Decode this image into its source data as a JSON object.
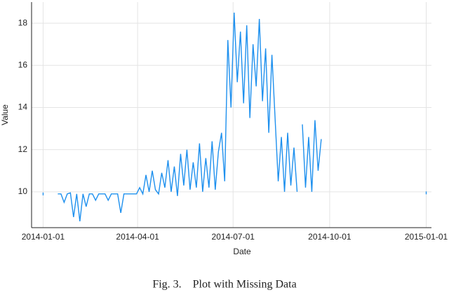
{
  "chart_data": {
    "type": "line",
    "caption": "Fig. 3.    Plot with Missing Data",
    "xlabel": "Date",
    "ylabel": "Value",
    "x": [
      "2014-01-01",
      "2014-01-04",
      "2014-01-15",
      "2014-01-18",
      "2014-01-21",
      "2014-01-24",
      "2014-01-27",
      "2014-01-30",
      "2014-02-02",
      "2014-02-05",
      "2014-02-08",
      "2014-02-11",
      "2014-02-14",
      "2014-02-17",
      "2014-02-20",
      "2014-02-23",
      "2014-02-26",
      "2014-03-01",
      "2014-03-04",
      "2014-03-07",
      "2014-03-10",
      "2014-03-13",
      "2014-03-16",
      "2014-03-19",
      "2014-03-22",
      "2014-03-25",
      "2014-03-28",
      "2014-03-31",
      "2014-04-03",
      "2014-04-06",
      "2014-04-09",
      "2014-04-12",
      "2014-04-15",
      "2014-04-18",
      "2014-04-21",
      "2014-04-24",
      "2014-04-27",
      "2014-04-30",
      "2014-05-03",
      "2014-05-06",
      "2014-05-09",
      "2014-05-12",
      "2014-05-15",
      "2014-05-18",
      "2014-05-21",
      "2014-05-24",
      "2014-05-27",
      "2014-05-30",
      "2014-06-02",
      "2014-06-05",
      "2014-06-08",
      "2014-06-11",
      "2014-06-14",
      "2014-06-17",
      "2014-06-20",
      "2014-06-23",
      "2014-06-26",
      "2014-06-29",
      "2014-07-02",
      "2014-07-05",
      "2014-07-08",
      "2014-07-11",
      "2014-07-14",
      "2014-07-17",
      "2014-07-20",
      "2014-07-23",
      "2014-07-26",
      "2014-07-29",
      "2014-08-01",
      "2014-08-04",
      "2014-08-07",
      "2014-08-10",
      "2014-08-13",
      "2014-08-16",
      "2014-08-19",
      "2014-08-22",
      "2014-08-25",
      "2014-08-28",
      "2014-08-31",
      "2014-09-02",
      "2014-09-05",
      "2014-09-08",
      "2014-09-11",
      "2014-09-14",
      "2014-09-17",
      "2014-09-20",
      "2014-09-23",
      "2014-09-26",
      "2015-01-01"
    ],
    "series": [
      {
        "name": "Value",
        "color": "#1e90ee",
        "values": [
          9.9,
          null,
          9.9,
          9.9,
          9.5,
          9.9,
          9.95,
          8.8,
          9.9,
          8.6,
          9.9,
          9.3,
          9.9,
          9.9,
          9.6,
          9.9,
          9.9,
          9.9,
          9.6,
          9.9,
          9.9,
          9.9,
          9.0,
          9.9,
          9.9,
          9.9,
          9.9,
          9.9,
          10.2,
          9.9,
          10.8,
          10.0,
          11.0,
          10.1,
          9.9,
          10.9,
          10.2,
          11.5,
          10.0,
          11.2,
          9.8,
          11.8,
          10.3,
          12.0,
          10.1,
          11.4,
          10.2,
          12.3,
          10.0,
          11.6,
          10.2,
          12.4,
          10.1,
          11.9,
          12.8,
          10.5,
          17.2,
          14.0,
          18.5,
          15.2,
          17.6,
          14.2,
          17.9,
          13.5,
          17.0,
          15.0,
          18.2,
          14.3,
          16.8,
          12.8,
          16.5,
          13.5,
          10.5,
          12.6,
          10.0,
          12.8,
          10.3,
          12.1,
          10.0,
          null,
          13.2,
          10.2,
          12.6,
          10.0,
          13.4,
          11.0,
          12.5,
          null,
          9.95
        ]
      }
    ],
    "xlim": [
      "2013-12-21",
      "2015-01-06"
    ],
    "xticks": [
      "2014-01-01",
      "2014-04-01",
      "2014-07-01",
      "2014-10-01",
      "2015-01-01"
    ],
    "ylim": [
      8.3,
      19
    ],
    "yticks": [
      10,
      12,
      14,
      16,
      18
    ],
    "grid": true
  }
}
